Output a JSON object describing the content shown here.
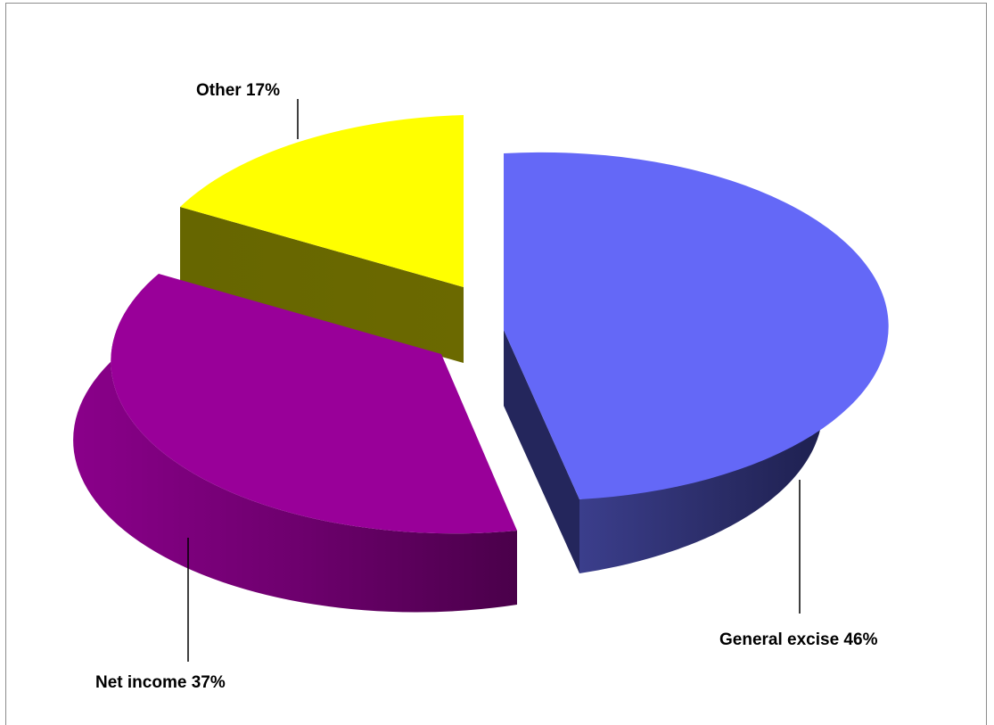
{
  "chart_data": {
    "type": "pie",
    "style": "3d-exploded",
    "slices": [
      {
        "label": "General excise 46%",
        "category": "General excise",
        "value": 46,
        "top_color": "#6468f7",
        "side_color": "#2a2c66"
      },
      {
        "label": "Net income 37%",
        "category": "Net income",
        "value": 37,
        "top_color": "#990099",
        "side_color": "#6e006e"
      },
      {
        "label": "Other 17%",
        "category": "Other",
        "value": 17,
        "top_color": "#ffff00",
        "side_color": "#6b6900"
      }
    ],
    "colors": {
      "general_excise_top": "#6468f7",
      "general_excise_side": "#2a2c66",
      "net_income_top": "#990099",
      "net_income_side": "#6e006e",
      "other_top": "#ffff00",
      "other_side": "#6b6900",
      "border": "#8c8c8c"
    }
  }
}
